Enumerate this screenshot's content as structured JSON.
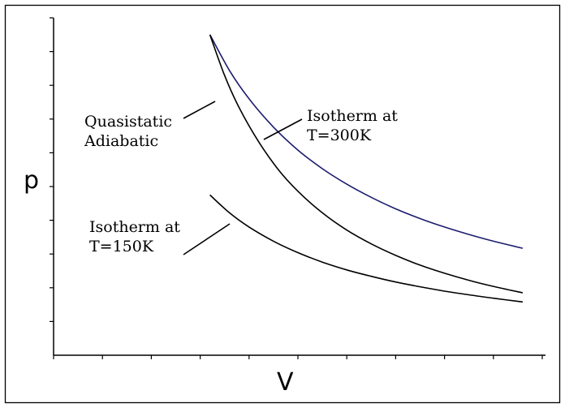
{
  "chart_data": {
    "type": "line",
    "xlabel": "V",
    "ylabel": "p",
    "xlim": [
      0,
      10
    ],
    "ylim": [
      0,
      10
    ],
    "grid": false,
    "x_tick_count": 10,
    "y_tick_count": 10,
    "series": [
      {
        "key": "isotherm-300",
        "color": "#1c1c6e",
        "x": [
          3.2,
          3.6,
          4.0,
          4.5,
          5.0,
          5.5,
          6.0,
          6.5,
          7.0,
          7.5,
          8.0,
          8.5,
          9.0,
          9.6
        ],
        "y": [
          9.5,
          8.44,
          7.6,
          6.76,
          6.08,
          5.53,
          5.07,
          4.68,
          4.34,
          4.05,
          3.8,
          3.58,
          3.38,
          3.17
        ]
      },
      {
        "key": "adiabatic",
        "color": "#000000",
        "x": [
          3.2,
          3.5,
          3.8,
          4.2,
          4.6,
          5.0,
          5.5,
          6.0,
          6.5,
          7.0,
          7.5,
          8.0,
          8.5,
          9.0,
          9.6
        ],
        "y": [
          9.5,
          8.29,
          7.33,
          6.32,
          5.5,
          4.86,
          4.22,
          3.71,
          3.3,
          2.96,
          2.67,
          2.43,
          2.22,
          2.04,
          1.85
        ]
      },
      {
        "key": "isotherm-150",
        "color": "#000000",
        "x": [
          3.2,
          3.6,
          4.0,
          4.5,
          5.0,
          5.5,
          6.0,
          6.5,
          7.0,
          7.5,
          8.0,
          8.5,
          9.0,
          9.6
        ],
        "y": [
          4.75,
          4.22,
          3.8,
          3.38,
          3.04,
          2.76,
          2.53,
          2.34,
          2.17,
          2.03,
          1.9,
          1.79,
          1.69,
          1.58
        ]
      }
    ],
    "annotations": [
      {
        "key": "isotherm-300-label",
        "lines": [
          "Isotherm at",
          "T=300K"
        ]
      },
      {
        "key": "adiabatic-label",
        "lines": [
          "Quasistatic",
          "Adiabatic"
        ]
      },
      {
        "key": "isotherm-150-label",
        "lines": [
          "Isotherm at",
          "T=150K"
        ]
      }
    ]
  }
}
